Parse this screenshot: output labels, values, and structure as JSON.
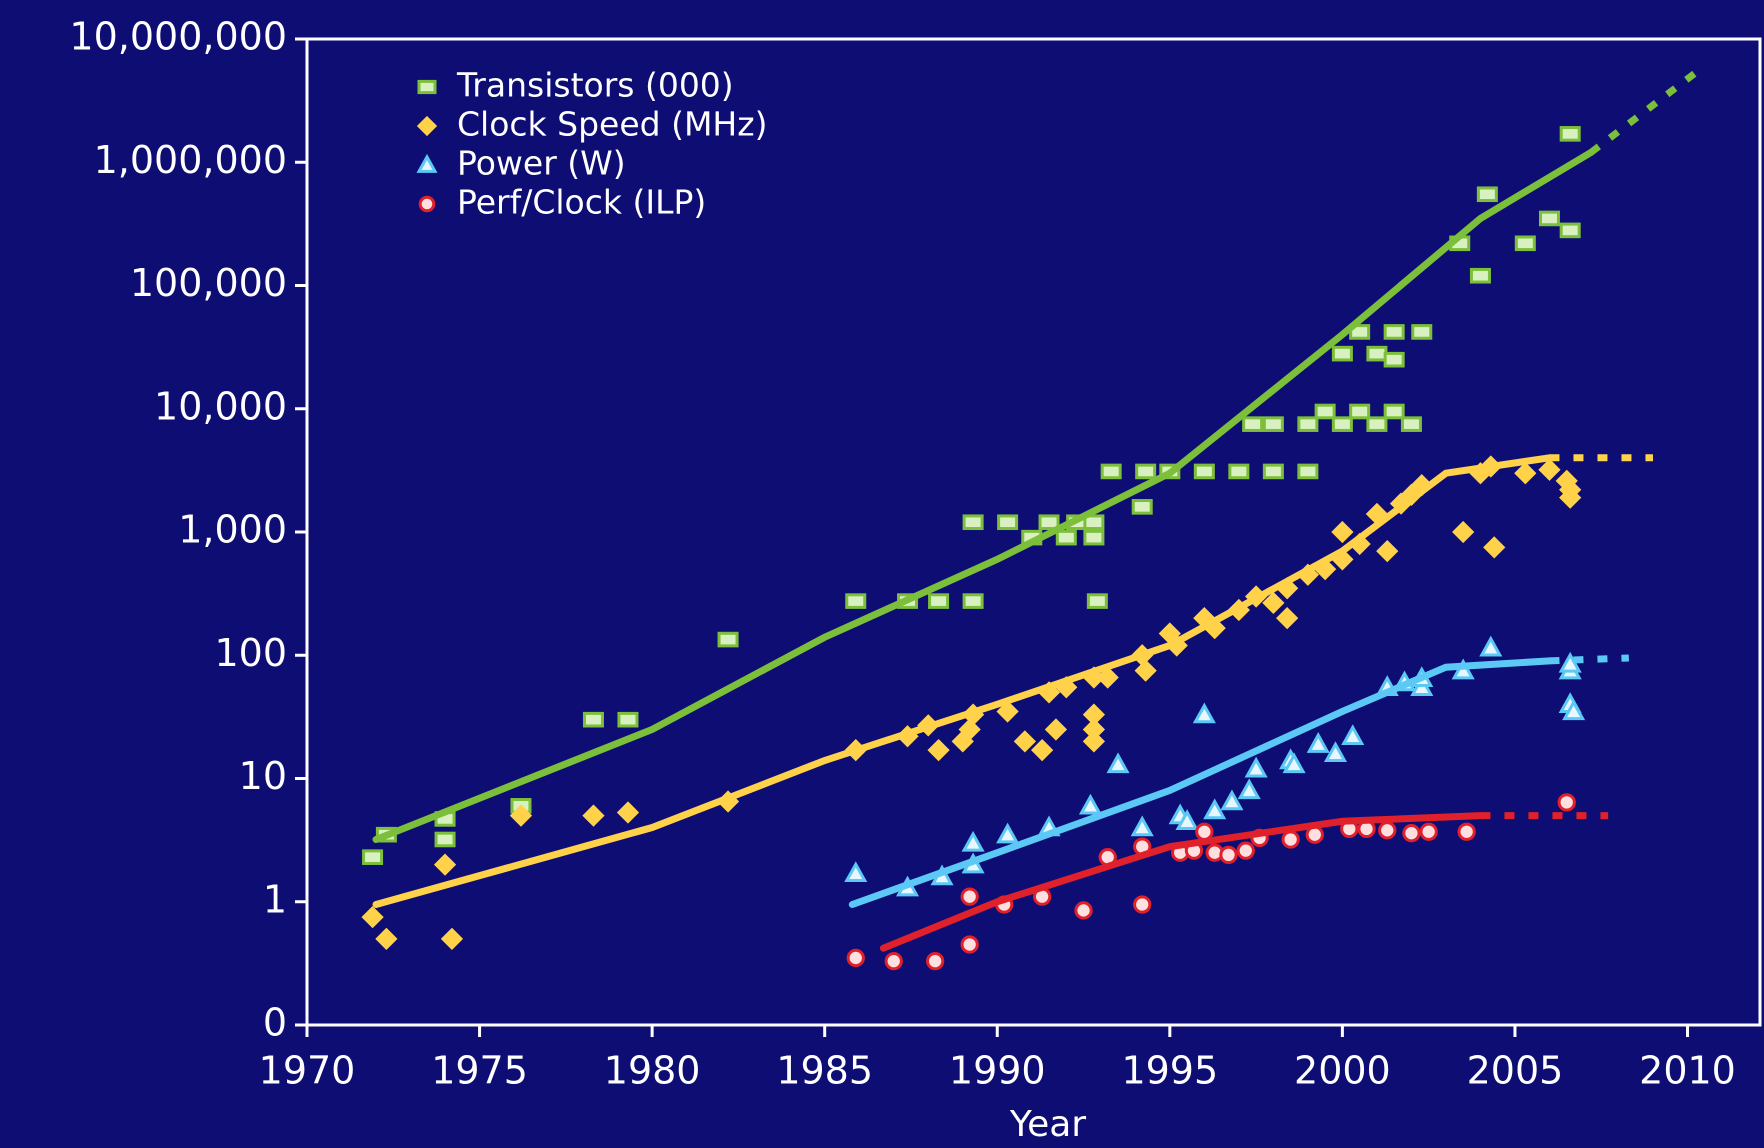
{
  "chart_data": {
    "type": "scatter",
    "xlabel": "Year",
    "xlim": [
      1970,
      2012.1
    ],
    "xticks": [
      1970,
      1975,
      1980,
      1985,
      1990,
      1995,
      2000,
      2005,
      2010
    ],
    "ylim": [
      0.1,
      10000000
    ],
    "yscale": "log",
    "yticks": [
      {
        "value": 0.1,
        "label": "0"
      },
      1,
      10,
      100,
      {
        "value": 1000,
        "label": "1,000"
      },
      {
        "value": 10000,
        "label": "10,000"
      },
      {
        "value": 100000,
        "label": "100,000"
      },
      {
        "value": 1000000,
        "label": "1,000,000"
      },
      {
        "value": 10000000,
        "label": "10,000,000"
      }
    ],
    "legend": "upper left",
    "series": [
      {
        "name": "Transistors (000)",
        "color": "#7cbf3a",
        "marker": "square",
        "x": [
          1971.9,
          1972.3,
          1974,
          1974,
          1976.2,
          1978.3,
          1979.3,
          1982.2,
          1985.9,
          1987.4,
          1988.3,
          1989.3,
          1989.3,
          1990.3,
          1991,
          1991.5,
          1992,
          1992.3,
          1992.8,
          1992.8,
          1992.9,
          1993.3,
          1994.2,
          1994.3,
          1995,
          1996,
          1997,
          1998,
          1999,
          1997.4,
          1998,
          1999,
          2000,
          2001,
          2002,
          1999.5,
          2000.5,
          2001.5,
          2000,
          2001,
          2000.5,
          2001.5,
          2002.3,
          2001.5,
          2003.4,
          2004,
          2004.2,
          2005.3,
          2006,
          2006.6,
          2006.6
        ],
        "values": [
          2.3,
          3.5,
          4.7,
          3.2,
          6,
          30,
          30,
          134,
          275,
          275,
          275,
          275,
          1200,
          1200,
          900,
          1200,
          900,
          1200,
          1200,
          900,
          275,
          3100,
          1600,
          3100,
          3100,
          3100,
          3100,
          3100,
          3100,
          7500,
          7500,
          7500,
          7500,
          7500,
          7500,
          9500,
          9500,
          9500,
          28000,
          28000,
          42000,
          42000,
          42000,
          25000,
          220000,
          120000,
          550000,
          220000,
          350000,
          280000,
          1700000
        ],
        "trend": {
          "x": [
            1972,
            1980,
            1985,
            1990,
            1995,
            2000,
            2004,
            2007.2
          ],
          "values": [
            3.2,
            25,
            140,
            600,
            3000,
            40000,
            350000,
            1200000
          ]
        },
        "projection": {
          "x": [
            2007.2,
            2010.3
          ],
          "values": [
            1200000,
            5500000
          ]
        }
      },
      {
        "name": "Clock Speed (MHz)",
        "color": "#ffd24a",
        "marker": "diamond",
        "x": [
          1971.9,
          1972.3,
          1974,
          1974.2,
          1976.2,
          1978.3,
          1979.3,
          1982.2,
          1985.9,
          1987.4,
          1988,
          1988.3,
          1989,
          1989.2,
          1989.3,
          1990.3,
          1990.8,
          1991.3,
          1991.5,
          1991.7,
          1992,
          1992.8,
          1992.8,
          1992.8,
          1992.8,
          1993.2,
          1994.2,
          1994.3,
          1995.2,
          1995,
          1996,
          1996.3,
          1997,
          1997.5,
          1998,
          1998.4,
          1998.4,
          1999,
          1999.5,
          2000,
          2000,
          2000.5,
          2001,
          2001.3,
          2001.7,
          2002,
          2002.3,
          2003.5,
          2004,
          2004.3,
          2004.4,
          2005.3,
          2006,
          2006.5,
          2006.6,
          2006.6
        ],
        "values": [
          0.75,
          0.5,
          2,
          0.5,
          5,
          5,
          5.3,
          6.5,
          17,
          22,
          27,
          17,
          20,
          25,
          33,
          35,
          20,
          17,
          50,
          25,
          55,
          66,
          33,
          25,
          20,
          66,
          100,
          75,
          120,
          150,
          200,
          166,
          233,
          300,
          266,
          350,
          200,
          450,
          500,
          600,
          1000,
          800,
          1400,
          700,
          1700,
          2000,
          2400,
          1000,
          3000,
          3400,
          750,
          3000,
          3200,
          2600,
          1900,
          2200
        ],
        "trend": {
          "x": [
            1972,
            1980,
            1985,
            1990,
            1995,
            2000,
            2003,
            2006
          ],
          "values": [
            0.95,
            4,
            14,
            40,
            120,
            700,
            3000,
            4000
          ]
        },
        "projection": {
          "x": [
            2006,
            2009
          ],
          "values": [
            4000,
            4000
          ]
        }
      },
      {
        "name": "Power (W)",
        "color": "#5bc8f5",
        "marker": "triangle",
        "x": [
          1985.9,
          1987.4,
          1988.4,
          1989.3,
          1989.3,
          1990.3,
          1991.5,
          1992.7,
          1993.5,
          1994.2,
          1995.3,
          1995.5,
          1996,
          1996.3,
          1996.8,
          1997.3,
          1997.5,
          1998.5,
          1998.6,
          1999.3,
          1999.8,
          2000.3,
          2001.3,
          2001.8,
          2002.3,
          2002.3,
          2003.5,
          2004.3,
          2006.6,
          2006.6,
          2006.6,
          2006.7
        ],
        "values": [
          1.7,
          1.3,
          1.6,
          3,
          2,
          3.5,
          4,
          6,
          13,
          4,
          5,
          4.5,
          33,
          5.5,
          6.5,
          8,
          12,
          14,
          13,
          19,
          16,
          22,
          55,
          60,
          55,
          65,
          75,
          115,
          75,
          85,
          40,
          35
        ],
        "trend": {
          "x": [
            1985.8,
            1990,
            1995,
            2000,
            2003,
            2006
          ],
          "values": [
            0.95,
            2.5,
            8,
            35,
            80,
            90
          ]
        },
        "projection": {
          "x": [
            2006,
            2008.3
          ],
          "values": [
            90,
            95
          ]
        }
      },
      {
        "name": "Perf/Clock (ILP)",
        "color": "#e0202a",
        "marker": "circle",
        "x": [
          1985.9,
          1987,
          1988.2,
          1989.2,
          1989.2,
          1990.2,
          1991.3,
          1992.5,
          1993.2,
          1994.2,
          1994.2,
          1995.3,
          1995.7,
          1996,
          1996.3,
          1996.7,
          1997.2,
          1997.6,
          1998.5,
          1999.2,
          2000.2,
          2000.7,
          2001.3,
          2002,
          2002.5,
          2003.6,
          2006.5
        ],
        "values": [
          0.35,
          0.33,
          0.33,
          0.45,
          1.1,
          0.95,
          1.1,
          0.85,
          2.3,
          0.95,
          2.8,
          2.5,
          2.6,
          3.7,
          2.5,
          2.4,
          2.6,
          3.3,
          3.2,
          3.5,
          3.9,
          3.9,
          3.8,
          3.6,
          3.7,
          3.7,
          6.4
        ],
        "trend": {
          "x": [
            1986.7,
            1990,
            1995,
            2000,
            2004
          ],
          "values": [
            0.42,
            1.0,
            2.8,
            4.5,
            5
          ]
        },
        "projection": {
          "x": [
            2004,
            2007.7
          ],
          "values": [
            5,
            5
          ]
        }
      }
    ]
  }
}
